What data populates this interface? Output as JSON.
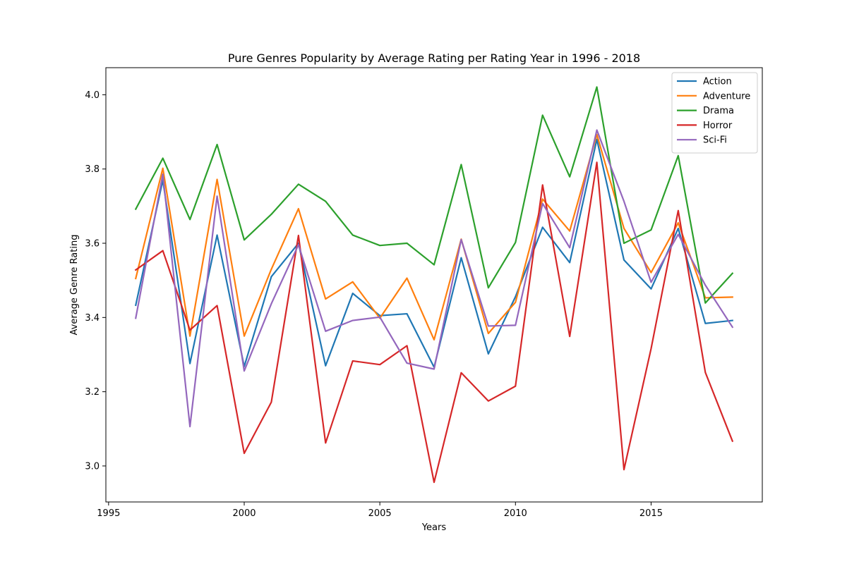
{
  "chart_data": {
    "type": "line",
    "title": "Pure Genres Popularity by Average Rating per Rating Year in 1996 - 2018",
    "xlabel": "Years",
    "ylabel": "Average Genre Rating",
    "xlim": [
      1994.9,
      2019.1
    ],
    "ylim": [
      2.903,
      4.073
    ],
    "xticks": [
      1995,
      2000,
      2005,
      2010,
      2015
    ],
    "xtick_labels": [
      "1995",
      "2000",
      "2005",
      "2010",
      "2015"
    ],
    "yticks": [
      3.0,
      3.2,
      3.4,
      3.6,
      3.8,
      4.0
    ],
    "ytick_labels": [
      "3.0",
      "3.2",
      "3.4",
      "3.6",
      "3.8",
      "4.0"
    ],
    "grid": false,
    "legend_position": "upper right",
    "x": [
      1996,
      1997,
      1998,
      1999,
      2000,
      2001,
      2002,
      2003,
      2004,
      2005,
      2006,
      2007,
      2008,
      2009,
      2010,
      2011,
      2012,
      2013,
      2014,
      2015,
      2016,
      2017,
      2018
    ],
    "series": [
      {
        "name": "Action",
        "color": "#1f77b4",
        "values": [
          3.433,
          3.77,
          3.276,
          3.622,
          3.268,
          3.51,
          3.6,
          3.27,
          3.465,
          3.405,
          3.41,
          3.266,
          3.561,
          3.302,
          3.456,
          3.643,
          3.548,
          3.88,
          3.555,
          3.477,
          3.64,
          3.384,
          3.392
        ]
      },
      {
        "name": "Adventure",
        "color": "#ff7f0e",
        "values": [
          3.505,
          3.802,
          3.35,
          3.772,
          3.35,
          3.53,
          3.693,
          3.45,
          3.496,
          3.398,
          3.506,
          3.34,
          3.611,
          3.357,
          3.441,
          3.719,
          3.633,
          3.893,
          3.64,
          3.521,
          3.655,
          3.453,
          3.455
        ]
      },
      {
        "name": "Drama",
        "color": "#2ca02c",
        "values": [
          3.692,
          3.829,
          3.664,
          3.866,
          3.609,
          3.678,
          3.759,
          3.713,
          3.622,
          3.594,
          3.6,
          3.542,
          3.812,
          3.48,
          3.602,
          3.945,
          3.779,
          4.021,
          3.6,
          3.636,
          3.836,
          3.439,
          3.519
        ]
      },
      {
        "name": "Horror",
        "color": "#d62728",
        "values": [
          3.528,
          3.58,
          3.366,
          3.432,
          3.034,
          3.172,
          3.621,
          3.062,
          3.283,
          3.273,
          3.324,
          2.956,
          3.251,
          3.175,
          3.215,
          3.757,
          3.349,
          3.818,
          2.99,
          3.316,
          3.688,
          3.252,
          3.067
        ]
      },
      {
        "name": "Sci-Fi",
        "color": "#9467bd",
        "values": [
          3.398,
          3.786,
          3.106,
          3.727,
          3.256,
          3.437,
          3.596,
          3.363,
          3.392,
          3.401,
          3.277,
          3.261,
          3.61,
          3.377,
          3.379,
          3.707,
          3.588,
          3.905,
          3.713,
          3.495,
          3.624,
          3.487,
          3.374
        ]
      }
    ]
  }
}
